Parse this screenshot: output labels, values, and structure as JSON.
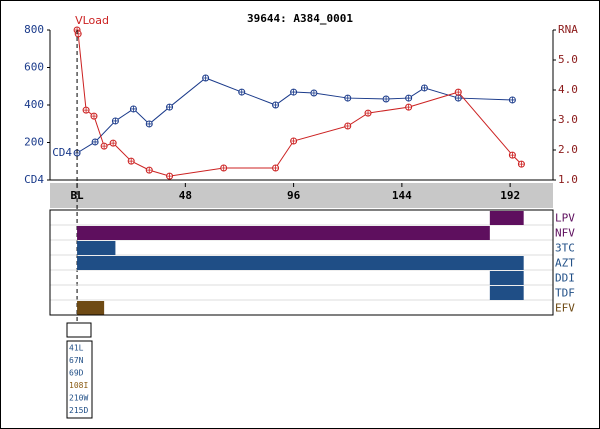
{
  "chart_data": [
    {
      "type": "line",
      "title": "39644: A384_0001",
      "xlim": [
        -12,
        211
      ],
      "xticks": [
        {
          "value": 0,
          "label": "BL"
        },
        48,
        96,
        144,
        192
      ],
      "ylim": [
        0,
        800
      ],
      "yticks": [
        {
          "value": 0,
          "label": "CD4"
        },
        200,
        400,
        600,
        800
      ],
      "y2lim": [
        1,
        6
      ],
      "y2ticks": [
        {
          "value": 1,
          "label": "1.0"
        },
        {
          "value": 2,
          "label": "2.0"
        },
        {
          "value": 3,
          "label": "3.0"
        },
        {
          "value": 4,
          "label": "4.0"
        },
        {
          "value": 5,
          "label": "5.0"
        },
        {
          "value": 6,
          "label": "RNA"
        }
      ],
      "series": [
        {
          "name": "CD4",
          "color": "#1a3a8a",
          "axis": "y",
          "x": [
            0,
            8,
            17,
            25,
            32,
            41,
            57,
            73,
            88,
            96,
            105,
            120,
            137,
            147,
            154,
            169,
            193
          ],
          "values": [
            144,
            203,
            315,
            379,
            299,
            389,
            544,
            469,
            400,
            469,
            464,
            437,
            432,
            437,
            491,
            437,
            427
          ]
        },
        {
          "name": "VLoad",
          "color": "#cc2222",
          "axis": "y2",
          "x": [
            0,
            0.5,
            4,
            7.5,
            12,
            16,
            24,
            32,
            41,
            65,
            88,
            96,
            120,
            129,
            147,
            169,
            193,
            197
          ],
          "values": [
            6.0,
            5.87,
            3.33,
            3.13,
            2.13,
            2.23,
            1.63,
            1.33,
            1.13,
            1.4,
            1.4,
            2.3,
            2.8,
            3.23,
            3.43,
            3.93,
            1.83,
            1.53
          ]
        }
      ]
    },
    {
      "type": "timeline",
      "xlim": [
        -12,
        211
      ],
      "rows": [
        {
          "name": "LPV",
          "color": "#5e0f5e",
          "start": 183,
          "end": 198
        },
        {
          "name": "NFV",
          "color": "#5e0f5e",
          "start": 0,
          "end": 183
        },
        {
          "name": "3TC",
          "color": "#1f4e86",
          "start": 0,
          "end": 17
        },
        {
          "name": "AZT",
          "color": "#1f4e86",
          "start": 0,
          "end": 198
        },
        {
          "name": "DDI",
          "color": "#1f4e86",
          "start": 183,
          "end": 198
        },
        {
          "name": "TDF",
          "color": "#1f4e86",
          "start": 183,
          "end": 198
        },
        {
          "name": "EFV",
          "color": "#6e4a14",
          "start": 0,
          "end": 12
        }
      ],
      "mutations": [
        {
          "label": "41L",
          "color": "#1f4e86"
        },
        {
          "label": "67N",
          "color": "#1f4e86"
        },
        {
          "label": "69D",
          "color": "#1f4e86"
        },
        {
          "label": "108I",
          "color": "#8a5a10"
        },
        {
          "label": "210W",
          "color": "#1f4e86"
        },
        {
          "label": "215D",
          "color": "#1f4e86"
        }
      ]
    }
  ]
}
